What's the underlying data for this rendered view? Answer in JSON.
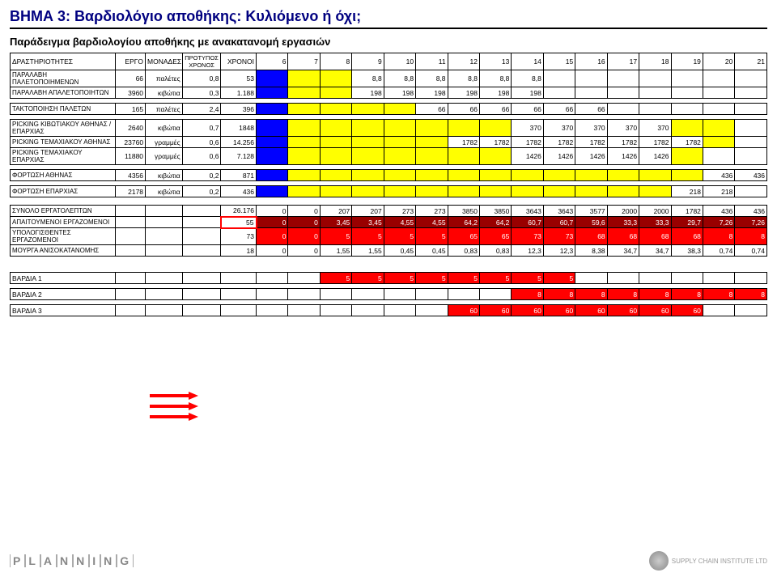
{
  "title": "ΒΗΜΑ 3: Βαρδιολόγιο αποθήκης: Κυλιόμενο ή όχι;",
  "subtitle": "Παράδειγμα βαρδιολογίου αποθήκης με ανακατανομή εργασιών",
  "hdr": {
    "activity": "ΔΡΑΣΤΗΡΙΟΤΗΤΕΣ",
    "ergo": "ΕΡΓΟ",
    "monades": "ΜΟΝΑΔΕΣ",
    "protypos": "ΠΡΟΤΥΠΟΣ ΧΡΟΝΟΣ",
    "xronoi": "ΧΡΟΝΟΙ"
  },
  "hourCols": [
    "6",
    "7",
    "8",
    "9",
    "10",
    "11",
    "12",
    "13",
    "14",
    "15",
    "16",
    "17",
    "18",
    "19",
    "20",
    "21"
  ],
  "rows": {
    "r1": {
      "label": "ΠΑΡΑΛΑΒΗ ΠΑΛΕΤΟΠΟΙΗΜΕΝΩΝ",
      "ergo": "66",
      "mon": "παλέτες",
      "pro": "0,8",
      "xro": "53",
      "cells": [
        {
          "v": "",
          "c": "blue"
        },
        {
          "v": "",
          "c": "yellow"
        },
        {
          "v": "",
          "c": "yellow"
        },
        {
          "v": "8,8",
          "c": ""
        },
        {
          "v": "8,8",
          "c": ""
        },
        {
          "v": "8,8",
          "c": ""
        },
        {
          "v": "8,8",
          "c": ""
        },
        {
          "v": "8,8",
          "c": ""
        },
        {
          "v": "8,8",
          "c": ""
        },
        {
          "v": "",
          "c": ""
        },
        {
          "v": "",
          "c": ""
        },
        {
          "v": "",
          "c": ""
        },
        {
          "v": "",
          "c": ""
        },
        {
          "v": "",
          "c": ""
        },
        {
          "v": "",
          "c": ""
        },
        {
          "v": "",
          "c": ""
        }
      ]
    },
    "r2": {
      "label": "ΠΑΡΑΛΑΒΗ ΑΠΑΛΕΤΟΠΟΙΗΤΩΝ",
      "ergo": "3960",
      "mon": "κιβώτια",
      "pro": "0,3",
      "xro": "1.188",
      "cells": [
        {
          "v": "",
          "c": "blue"
        },
        {
          "v": "",
          "c": "yellow"
        },
        {
          "v": "",
          "c": "yellow"
        },
        {
          "v": "198",
          "c": ""
        },
        {
          "v": "198",
          "c": ""
        },
        {
          "v": "198",
          "c": ""
        },
        {
          "v": "198",
          "c": ""
        },
        {
          "v": "198",
          "c": ""
        },
        {
          "v": "198",
          "c": ""
        },
        {
          "v": "",
          "c": ""
        },
        {
          "v": "",
          "c": ""
        },
        {
          "v": "",
          "c": ""
        },
        {
          "v": "",
          "c": ""
        },
        {
          "v": "",
          "c": ""
        },
        {
          "v": "",
          "c": ""
        },
        {
          "v": "",
          "c": ""
        }
      ]
    },
    "r3": {
      "label": "ΤΑΚΤΟΠΟΙΗΣΗ ΠΑΛΕΤΩΝ",
      "ergo": "165",
      "mon": "παλέτες",
      "pro": "2,4",
      "xro": "396",
      "cells": [
        {
          "v": "",
          "c": "blue"
        },
        {
          "v": "",
          "c": "yellow"
        },
        {
          "v": "",
          "c": "yellow"
        },
        {
          "v": "",
          "c": "yellow"
        },
        {
          "v": "",
          "c": "yellow"
        },
        {
          "v": "66",
          "c": ""
        },
        {
          "v": "66",
          "c": ""
        },
        {
          "v": "66",
          "c": ""
        },
        {
          "v": "66",
          "c": ""
        },
        {
          "v": "66",
          "c": ""
        },
        {
          "v": "66",
          "c": ""
        },
        {
          "v": "",
          "c": ""
        },
        {
          "v": "",
          "c": ""
        },
        {
          "v": "",
          "c": ""
        },
        {
          "v": "",
          "c": ""
        },
        {
          "v": "",
          "c": ""
        }
      ]
    },
    "r4": {
      "label": "PICKING ΚΙΒΩΤΙΑΚΟΥ ΑΘΗΝΑΣ / ΕΠΑΡΧΙΑΣ",
      "ergo": "2640",
      "mon": "κιβώτια",
      "pro": "0,7",
      "xro": "1848",
      "cells": [
        {
          "v": "",
          "c": "blue"
        },
        {
          "v": "",
          "c": "yellow"
        },
        {
          "v": "",
          "c": "yellow"
        },
        {
          "v": "",
          "c": "yellow"
        },
        {
          "v": "",
          "c": "yellow"
        },
        {
          "v": "",
          "c": "yellow"
        },
        {
          "v": "",
          "c": "yellow"
        },
        {
          "v": "",
          "c": "yellow"
        },
        {
          "v": "370",
          "c": ""
        },
        {
          "v": "370",
          "c": ""
        },
        {
          "v": "370",
          "c": ""
        },
        {
          "v": "370",
          "c": ""
        },
        {
          "v": "370",
          "c": ""
        },
        {
          "v": "",
          "c": "yellow"
        },
        {
          "v": "",
          "c": "yellow"
        },
        {
          "v": "",
          "c": ""
        }
      ]
    },
    "r5": {
      "label": "PICKING ΤΕΜΑΧΙΑΚΟΥ ΑΘΗΝΑΣ",
      "ergo": "23760",
      "mon": "γραμμές",
      "pro": "0,6",
      "xro": "14.256",
      "cells": [
        {
          "v": "",
          "c": "blue"
        },
        {
          "v": "",
          "c": "yellow"
        },
        {
          "v": "",
          "c": "yellow"
        },
        {
          "v": "",
          "c": "yellow"
        },
        {
          "v": "",
          "c": "yellow"
        },
        {
          "v": "",
          "c": "yellow"
        },
        {
          "v": "1782",
          "c": ""
        },
        {
          "v": "1782",
          "c": ""
        },
        {
          "v": "1782",
          "c": ""
        },
        {
          "v": "1782",
          "c": ""
        },
        {
          "v": "1782",
          "c": ""
        },
        {
          "v": "1782",
          "c": ""
        },
        {
          "v": "1782",
          "c": ""
        },
        {
          "v": "1782",
          "c": ""
        },
        {
          "v": "",
          "c": "yellow"
        },
        {
          "v": "",
          "c": ""
        }
      ]
    },
    "r6": {
      "label": "PICKING ΤΕΜΑΧΙΑΚΟΥ ΕΠΑΡΧΙΑΣ",
      "ergo": "11880",
      "mon": "γραμμές",
      "pro": "0,6",
      "xro": "7.128",
      "cells": [
        {
          "v": "",
          "c": "blue"
        },
        {
          "v": "",
          "c": "yellow"
        },
        {
          "v": "",
          "c": "yellow"
        },
        {
          "v": "",
          "c": "yellow"
        },
        {
          "v": "",
          "c": "yellow"
        },
        {
          "v": "",
          "c": "yellow"
        },
        {
          "v": "",
          "c": "yellow"
        },
        {
          "v": "",
          "c": "yellow"
        },
        {
          "v": "1426",
          "c": ""
        },
        {
          "v": "1426",
          "c": ""
        },
        {
          "v": "1426",
          "c": ""
        },
        {
          "v": "1426",
          "c": ""
        },
        {
          "v": "1426",
          "c": ""
        },
        {
          "v": "",
          "c": "yellow"
        },
        {
          "v": "",
          "c": ""
        },
        {
          "v": "",
          "c": ""
        }
      ]
    },
    "r7": {
      "label": "ΦΟΡΤΩΣΗ ΑΘΗΝΑΣ",
      "ergo": "4356",
      "mon": "κιβώτια",
      "pro": "0,2",
      "xro": "871",
      "cells": [
        {
          "v": "",
          "c": "blue"
        },
        {
          "v": "",
          "c": "yellow"
        },
        {
          "v": "",
          "c": "yellow"
        },
        {
          "v": "",
          "c": "yellow"
        },
        {
          "v": "",
          "c": "yellow"
        },
        {
          "v": "",
          "c": "yellow"
        },
        {
          "v": "",
          "c": "yellow"
        },
        {
          "v": "",
          "c": "yellow"
        },
        {
          "v": "",
          "c": "yellow"
        },
        {
          "v": "",
          "c": "yellow"
        },
        {
          "v": "",
          "c": "yellow"
        },
        {
          "v": "",
          "c": "yellow"
        },
        {
          "v": "",
          "c": "yellow"
        },
        {
          "v": "",
          "c": "yellow"
        },
        {
          "v": "436",
          "c": ""
        },
        {
          "v": "436",
          "c": ""
        }
      ]
    },
    "r8": {
      "label": "ΦΟΡΤΩΣΗ ΕΠΑΡΧΙΑΣ",
      "ergo": "2178",
      "mon": "κιβώτια",
      "pro": "0,2",
      "xro": "436",
      "cells": [
        {
          "v": "",
          "c": "blue"
        },
        {
          "v": "",
          "c": "yellow"
        },
        {
          "v": "",
          "c": "yellow"
        },
        {
          "v": "",
          "c": "yellow"
        },
        {
          "v": "",
          "c": "yellow"
        },
        {
          "v": "",
          "c": "yellow"
        },
        {
          "v": "",
          "c": "yellow"
        },
        {
          "v": "",
          "c": "yellow"
        },
        {
          "v": "",
          "c": "yellow"
        },
        {
          "v": "",
          "c": "yellow"
        },
        {
          "v": "",
          "c": "yellow"
        },
        {
          "v": "",
          "c": "yellow"
        },
        {
          "v": "",
          "c": "yellow"
        },
        {
          "v": "218",
          "c": ""
        },
        {
          "v": "218",
          "c": ""
        },
        {
          "v": "",
          "c": ""
        }
      ]
    },
    "r9": {
      "label": "ΣΥΝΟΛΟ ΕΡΓΑΤΟΛΕΠΤΩΝ",
      "xro": "26.176",
      "cells": [
        {
          "v": "0",
          "c": ""
        },
        {
          "v": "0",
          "c": ""
        },
        {
          "v": "207",
          "c": ""
        },
        {
          "v": "207",
          "c": ""
        },
        {
          "v": "273",
          "c": ""
        },
        {
          "v": "273",
          "c": ""
        },
        {
          "v": "3850",
          "c": ""
        },
        {
          "v": "3850",
          "c": ""
        },
        {
          "v": "3643",
          "c": ""
        },
        {
          "v": "3643",
          "c": ""
        },
        {
          "v": "3577",
          "c": ""
        },
        {
          "v": "2000",
          "c": ""
        },
        {
          "v": "2000",
          "c": ""
        },
        {
          "v": "1782",
          "c": ""
        },
        {
          "v": "436",
          "c": ""
        },
        {
          "v": "436",
          "c": ""
        }
      ]
    },
    "r10": {
      "label": "ΑΠΑΙΤΟΥΜΕΝΟΙ ΕΡΓΑΖΟΜΕΝΟΙ",
      "xro": "55",
      "xrobox": true,
      "cells": [
        {
          "v": "0",
          "c": "dkred"
        },
        {
          "v": "0",
          "c": "dkred"
        },
        {
          "v": "3,45",
          "c": "dkred"
        },
        {
          "v": "3,45",
          "c": "dkred"
        },
        {
          "v": "4,55",
          "c": "dkred"
        },
        {
          "v": "4,55",
          "c": "dkred"
        },
        {
          "v": "64,2",
          "c": "dkred"
        },
        {
          "v": "64,2",
          "c": "dkred"
        },
        {
          "v": "60,7",
          "c": "dkred"
        },
        {
          "v": "60,7",
          "c": "dkred"
        },
        {
          "v": "59,6",
          "c": "dkred"
        },
        {
          "v": "33,3",
          "c": "dkred"
        },
        {
          "v": "33,3",
          "c": "dkred"
        },
        {
          "v": "29,7",
          "c": "dkred"
        },
        {
          "v": "7,26",
          "c": "dkred"
        },
        {
          "v": "7,26",
          "c": "dkred"
        }
      ]
    },
    "r11": {
      "label": "ΥΠΟΛΟΓΙΣΘΕΝΤΕΣ ΕΡΓΑΖΟΜΕΝΟΙ",
      "xro": "73",
      "cells": [
        {
          "v": "0",
          "c": "red"
        },
        {
          "v": "0",
          "c": "red"
        },
        {
          "v": "5",
          "c": "red"
        },
        {
          "v": "5",
          "c": "red"
        },
        {
          "v": "5",
          "c": "red"
        },
        {
          "v": "5",
          "c": "red"
        },
        {
          "v": "65",
          "c": "red"
        },
        {
          "v": "65",
          "c": "red"
        },
        {
          "v": "73",
          "c": "red"
        },
        {
          "v": "73",
          "c": "red"
        },
        {
          "v": "68",
          "c": "red"
        },
        {
          "v": "68",
          "c": "red"
        },
        {
          "v": "68",
          "c": "red"
        },
        {
          "v": "68",
          "c": "red"
        },
        {
          "v": "8",
          "c": "red"
        },
        {
          "v": "8",
          "c": "red"
        }
      ]
    },
    "r12": {
      "label": "ΜΟΥΡΓΑ ΑΝΙΣΟΚΑΤΑΝΟΜΗΣ",
      "xro": "18",
      "cells": [
        {
          "v": "0",
          "c": ""
        },
        {
          "v": "0",
          "c": ""
        },
        {
          "v": "1,55",
          "c": ""
        },
        {
          "v": "1,55",
          "c": ""
        },
        {
          "v": "0,45",
          "c": ""
        },
        {
          "v": "0,45",
          "c": ""
        },
        {
          "v": "0,83",
          "c": ""
        },
        {
          "v": "0,83",
          "c": ""
        },
        {
          "v": "12,3",
          "c": ""
        },
        {
          "v": "12,3",
          "c": ""
        },
        {
          "v": "8,38",
          "c": ""
        },
        {
          "v": "34,7",
          "c": ""
        },
        {
          "v": "34,7",
          "c": ""
        },
        {
          "v": "38,3",
          "c": ""
        },
        {
          "v": "0,74",
          "c": ""
        },
        {
          "v": "0,74",
          "c": ""
        }
      ]
    }
  },
  "shifts": {
    "s1": {
      "label": "ΒΑΡΔΙΑ 1",
      "cells": [
        {
          "v": ""
        },
        {
          "v": ""
        },
        {
          "v": "5",
          "c": "red"
        },
        {
          "v": "5",
          "c": "red"
        },
        {
          "v": "5",
          "c": "red"
        },
        {
          "v": "5",
          "c": "red"
        },
        {
          "v": "5",
          "c": "red"
        },
        {
          "v": "5",
          "c": "red"
        },
        {
          "v": "5",
          "c": "red"
        },
        {
          "v": "5",
          "c": "red"
        },
        {
          "v": ""
        },
        {
          "v": ""
        },
        {
          "v": ""
        },
        {
          "v": ""
        },
        {
          "v": ""
        },
        {
          "v": ""
        }
      ]
    },
    "s2": {
      "label": "ΒΑΡΔΙΑ 2",
      "cells": [
        {
          "v": ""
        },
        {
          "v": ""
        },
        {
          "v": ""
        },
        {
          "v": ""
        },
        {
          "v": ""
        },
        {
          "v": ""
        },
        {
          "v": ""
        },
        {
          "v": ""
        },
        {
          "v": "8",
          "c": "red"
        },
        {
          "v": "8",
          "c": "red"
        },
        {
          "v": "8",
          "c": "red"
        },
        {
          "v": "8",
          "c": "red"
        },
        {
          "v": "8",
          "c": "red"
        },
        {
          "v": "8",
          "c": "red"
        },
        {
          "v": "8",
          "c": "red"
        },
        {
          "v": "8",
          "c": "red"
        }
      ]
    },
    "s3": {
      "label": "ΒΑΡΔΙΑ 3",
      "cells": [
        {
          "v": ""
        },
        {
          "v": ""
        },
        {
          "v": ""
        },
        {
          "v": ""
        },
        {
          "v": ""
        },
        {
          "v": ""
        },
        {
          "v": "60",
          "c": "red"
        },
        {
          "v": "60",
          "c": "red"
        },
        {
          "v": "60",
          "c": "red"
        },
        {
          "v": "60",
          "c": "red"
        },
        {
          "v": "60",
          "c": "red"
        },
        {
          "v": "60",
          "c": "red"
        },
        {
          "v": "60",
          "c": "red"
        },
        {
          "v": "60",
          "c": "red"
        },
        {
          "v": ""
        },
        {
          "v": ""
        }
      ]
    }
  },
  "footer": {
    "planning": "P|L|A|N|N|I|N|G",
    "sci": "SUPPLY CHAIN INSTITUTE LTD"
  }
}
